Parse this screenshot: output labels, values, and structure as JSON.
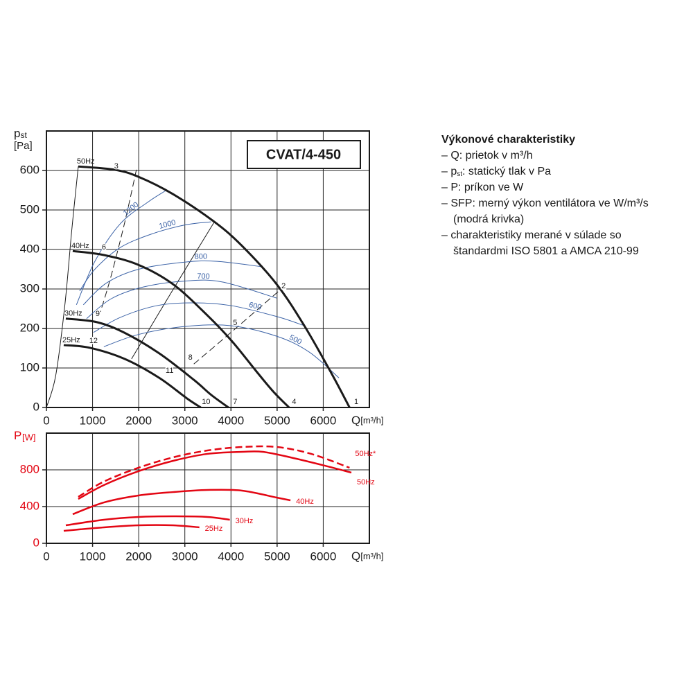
{
  "chart_data": [
    {
      "type": "line",
      "title": "CVAT/4-450",
      "y_label": "p",
      "y_label_sub": "st",
      "y_unit": "[Pa]",
      "x_label": "Q",
      "x_unit": "[m³/h]",
      "axis_color": "#1a1a1a",
      "xlim": [
        0,
        7000
      ],
      "xticks": [
        0,
        1000,
        2000,
        3000,
        4000,
        5000,
        6000
      ],
      "ylim": [
        0,
        700
      ],
      "yticks": [
        0,
        100,
        200,
        300,
        400,
        500,
        600
      ],
      "grid": true,
      "series": [
        {
          "name": "50Hz",
          "color": "#1a1a1a",
          "dashed": false,
          "x": [
            690,
            1470,
            1995,
            2745,
            3640,
            4240,
            4990,
            5590,
            6190,
            6570
          ],
          "values": [
            610,
            602,
            584,
            540,
            470,
            409,
            312,
            207,
            84,
            0
          ]
        },
        {
          "name": "40Hz",
          "color": "#1a1a1a",
          "dashed": false,
          "x": [
            570,
            1245,
            1995,
            2745,
            3490,
            4020,
            4540,
            4920,
            5260
          ],
          "values": [
            396,
            386,
            361,
            312,
            233,
            168,
            93,
            40,
            0
          ]
        },
        {
          "name": "30Hz",
          "color": "#1a1a1a",
          "dashed": false,
          "x": [
            420,
            1095,
            1695,
            2445,
            3195,
            3570,
            3945
          ],
          "values": [
            225,
            216,
            189,
            137,
            70,
            32,
            0
          ]
        },
        {
          "name": "25Hz",
          "color": "#1a1a1a",
          "dashed": false,
          "x": [
            375,
            945,
            1695,
            2445,
            3045,
            3345
          ],
          "values": [
            158,
            151,
            123,
            75,
            23,
            0
          ]
        }
      ],
      "sfp_series": [
        {
          "name": "1200",
          "color": "#3b62a6",
          "x": [
            650,
            1050,
            1600,
            2200,
            2600
          ],
          "values": [
            260,
            370,
            465,
            520,
            550
          ]
        },
        {
          "name": "1000",
          "color": "#3b62a6",
          "x": [
            720,
            1050,
            1600,
            2300,
            3000,
            3570
          ],
          "values": [
            295,
            350,
            405,
            440,
            462,
            470
          ]
        },
        {
          "name": "800",
          "color": "#3b62a6",
          "x": [
            800,
            1300,
            2000,
            3000,
            3700,
            4690
          ],
          "values": [
            260,
            315,
            350,
            368,
            370,
            356
          ]
        },
        {
          "name": "700",
          "color": "#3b62a6",
          "x": [
            870,
            1400,
            2100,
            3000,
            3800,
            4990
          ],
          "values": [
            225,
            275,
            305,
            320,
            318,
            277
          ]
        },
        {
          "name": "600",
          "color": "#3b62a6",
          "x": [
            1020,
            1600,
            2400,
            3200,
            4000,
            5000,
            5590
          ],
          "values": [
            190,
            228,
            258,
            265,
            258,
            230,
            207
          ]
        },
        {
          "name": "500",
          "color": "#3b62a6",
          "x": [
            1245,
            2000,
            3000,
            4000,
            5000,
            5700,
            6340
          ],
          "values": [
            154,
            185,
            205,
            207,
            180,
            140,
            75
          ]
        }
      ],
      "reference_lines": [
        {
          "dashed": false,
          "x": [
            0,
            200,
            400,
            550,
            690
          ],
          "values": [
            0,
            80,
            260,
            450,
            610
          ]
        },
        {
          "dashed": false,
          "x": [
            1845,
            2700,
            3640
          ],
          "values": [
            123,
            290,
            470
          ]
        },
        {
          "dashed": true,
          "x": [
            1950,
            1700,
            1395,
            1170
          ],
          "values": [
            602,
            470,
            330,
            242
          ]
        },
        {
          "dashed": true,
          "x": [
            3195,
            4100,
            5070
          ],
          "values": [
            110,
            200,
            298
          ]
        }
      ],
      "point_labels": [
        {
          "text": 1,
          "x": 6715,
          "y": 14
        },
        {
          "text": 2,
          "x": 5140,
          "y": 307
        },
        {
          "text": 3,
          "x": 1515,
          "y": 610
        },
        {
          "text": 4,
          "x": 5370,
          "y": 14
        },
        {
          "text": 5,
          "x": 4090,
          "y": 214
        },
        {
          "text": 6,
          "x": 1245,
          "y": 405
        },
        {
          "text": 7,
          "x": 4090,
          "y": 14
        },
        {
          "text": 8,
          "x": 3120,
          "y": 126
        },
        {
          "text": 9,
          "x": 1110,
          "y": 237
        },
        {
          "text": 10,
          "x": 3460,
          "y": 14
        },
        {
          "text": 11,
          "x": 2670,
          "y": 93
        },
        {
          "text": 12,
          "x": 1020,
          "y": 168
        }
      ]
    },
    {
      "type": "line",
      "y_label": "P",
      "y_unit": "[W]",
      "x_label": "Q",
      "x_unit": "[m³/h]",
      "axis_color": "#e30613",
      "xlim": [
        0,
        7000
      ],
      "xticks": [
        0,
        1000,
        2000,
        3000,
        4000,
        5000,
        6000
      ],
      "ylim": [
        0,
        1200
      ],
      "yticks": [
        0,
        400,
        800
      ],
      "grid": true,
      "series": [
        {
          "name": "50Hz*",
          "color": "#e30613",
          "dashed": true,
          "x": [
            690,
            1245,
            1995,
            2745,
            3490,
            4240,
            4990,
            5740,
            6570
          ],
          "values": [
            506,
            672,
            823,
            936,
            1011,
            1049,
            1049,
            974,
            823
          ]
        },
        {
          "name": "50Hz",
          "color": "#e30613",
          "dashed": false,
          "x": [
            690,
            1245,
            1995,
            2745,
            3490,
            4240,
            4690,
            5290,
            6040,
            6610
          ],
          "values": [
            483,
            634,
            785,
            898,
            974,
            996,
            996,
            936,
            845,
            770
          ]
        },
        {
          "name": "40Hz",
          "color": "#e30613",
          "dashed": false,
          "x": [
            570,
            1245,
            1995,
            2745,
            3490,
            4240,
            4990,
            5290
          ],
          "values": [
            317,
            445,
            521,
            558,
            581,
            574,
            498,
            468
          ]
        },
        {
          "name": "30Hz",
          "color": "#e30613",
          "dashed": false,
          "x": [
            420,
            1245,
            1995,
            2745,
            3490,
            3975
          ],
          "values": [
            196,
            257,
            287,
            294,
            287,
            257
          ]
        },
        {
          "name": "25Hz",
          "color": "#e30613",
          "dashed": false,
          "x": [
            375,
            1245,
            1995,
            2745,
            3315
          ],
          "values": [
            136,
            174,
            196,
            196,
            174
          ]
        }
      ]
    }
  ],
  "description": {
    "title": "Výkonové charakteristiky",
    "items": [
      [
        "– Q: prietok v m³/h"
      ],
      [
        "– p",
        "st",
        ": statický tlak v Pa"
      ],
      [
        "– P: príkon ve W"
      ],
      [
        "– SFP:  merný výkon ventilátora ve W/m³/s",
        "(modrá krivka)"
      ],
      [
        "– charakteristiky merané v súlade so",
        "štandardmi ISO 5801 a AMCA 210-99"
      ]
    ]
  }
}
